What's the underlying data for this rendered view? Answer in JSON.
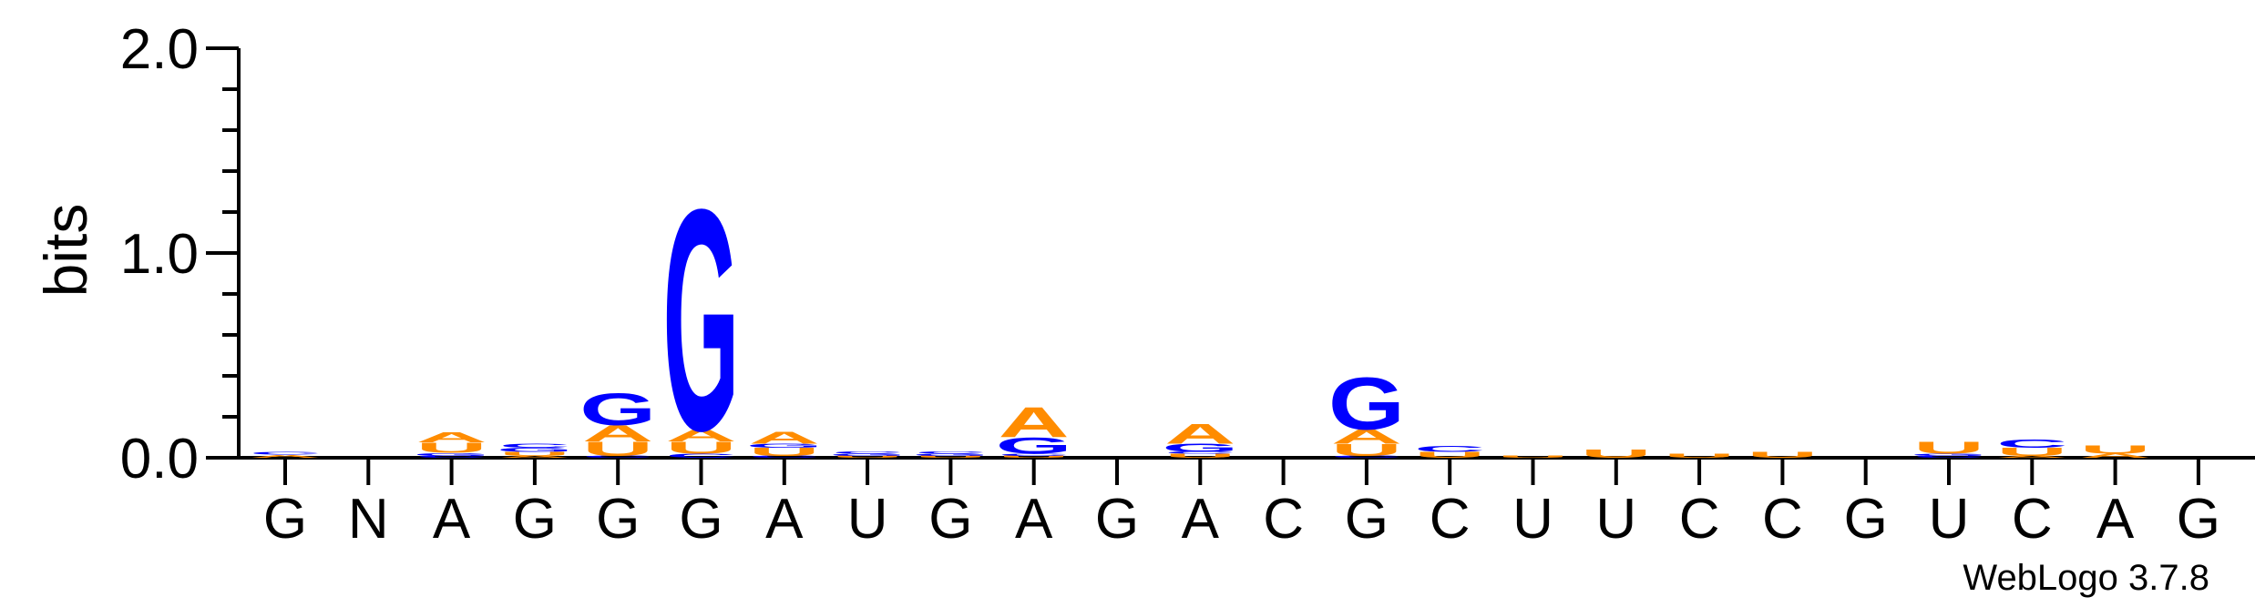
{
  "chart_data": {
    "type": "sequence-logo",
    "ylabel": "bits",
    "ylim": [
      0,
      2.0
    ],
    "yticks": [
      "0.0",
      "1.0",
      "2.0"
    ],
    "credit": "WebLogo 3.7.8",
    "colors": {
      "A": "#ff8c00",
      "U": "#ff8c00",
      "G": "#0000ff",
      "C": "#0000ff"
    },
    "positions": [
      {
        "label": "G",
        "stack": [
          {
            "letter": "A",
            "bits": 0.015
          },
          {
            "letter": "C",
            "bits": 0.015
          }
        ]
      },
      {
        "label": "N",
        "stack": []
      },
      {
        "label": "A",
        "stack": [
          {
            "letter": "C",
            "bits": 0.01
          },
          {
            "letter": "G",
            "bits": 0.015
          },
          {
            "letter": "U",
            "bits": 0.05
          },
          {
            "letter": "A",
            "bits": 0.05
          }
        ]
      },
      {
        "label": "G",
        "stack": [
          {
            "letter": "A",
            "bits": 0.01
          },
          {
            "letter": "U",
            "bits": 0.02
          },
          {
            "letter": "G",
            "bits": 0.02
          },
          {
            "letter": "C",
            "bits": 0.02
          }
        ]
      },
      {
        "label": "G",
        "stack": [
          {
            "letter": "C",
            "bits": 0.01
          },
          {
            "letter": "U",
            "bits": 0.07
          },
          {
            "letter": "A",
            "bits": 0.08
          },
          {
            "letter": "G",
            "bits": 0.16
          }
        ]
      },
      {
        "label": "G",
        "stack": [
          {
            "letter": "C",
            "bits": 0.02
          },
          {
            "letter": "U",
            "bits": 0.06
          },
          {
            "letter": "A",
            "bits": 0.06
          },
          {
            "letter": "G",
            "bits": 1.11
          }
        ]
      },
      {
        "label": "A",
        "stack": [
          {
            "letter": "C",
            "bits": 0.01
          },
          {
            "letter": "U",
            "bits": 0.04
          },
          {
            "letter": "G",
            "bits": 0.02
          },
          {
            "letter": "A",
            "bits": 0.06
          }
        ]
      },
      {
        "label": "U",
        "stack": [
          {
            "letter": "U",
            "bits": 0.01
          },
          {
            "letter": "G",
            "bits": 0.01
          },
          {
            "letter": "C",
            "bits": 0.01
          }
        ]
      },
      {
        "label": "G",
        "stack": [
          {
            "letter": "U",
            "bits": 0.01
          },
          {
            "letter": "G",
            "bits": 0.01
          },
          {
            "letter": "C",
            "bits": 0.01
          }
        ]
      },
      {
        "label": "A",
        "stack": [
          {
            "letter": "U",
            "bits": 0.01
          },
          {
            "letter": "C",
            "bits": 0.01
          },
          {
            "letter": "G",
            "bits": 0.08
          },
          {
            "letter": "A",
            "bits": 0.15
          }
        ]
      },
      {
        "label": "G",
        "stack": []
      },
      {
        "label": "A",
        "stack": [
          {
            "letter": "U",
            "bits": 0.02
          },
          {
            "letter": "C",
            "bits": 0.01
          },
          {
            "letter": "G",
            "bits": 0.04
          },
          {
            "letter": "A",
            "bits": 0.1
          }
        ]
      },
      {
        "label": "C",
        "stack": []
      },
      {
        "label": "G",
        "stack": [
          {
            "letter": "C",
            "bits": 0.01
          },
          {
            "letter": "U",
            "bits": 0.06
          },
          {
            "letter": "A",
            "bits": 0.07
          },
          {
            "letter": "G",
            "bits": 0.26
          }
        ]
      },
      {
        "label": "C",
        "stack": [
          {
            "letter": "U",
            "bits": 0.03
          },
          {
            "letter": "C",
            "bits": 0.03
          }
        ]
      },
      {
        "label": "U",
        "stack": [
          {
            "letter": "U",
            "bits": 0.01
          }
        ]
      },
      {
        "label": "U",
        "stack": [
          {
            "letter": "U",
            "bits": 0.04
          }
        ]
      },
      {
        "label": "C",
        "stack": [
          {
            "letter": "U",
            "bits": 0.02
          }
        ]
      },
      {
        "label": "C",
        "stack": [
          {
            "letter": "U",
            "bits": 0.03
          }
        ]
      },
      {
        "label": "G",
        "stack": []
      },
      {
        "label": "U",
        "stack": [
          {
            "letter": "C",
            "bits": 0.01
          },
          {
            "letter": "G",
            "bits": 0.01
          },
          {
            "letter": "U",
            "bits": 0.06
          }
        ]
      },
      {
        "label": "C",
        "stack": [
          {
            "letter": "A",
            "bits": 0.01
          },
          {
            "letter": "U",
            "bits": 0.04
          },
          {
            "letter": "C",
            "bits": 0.04
          }
        ]
      },
      {
        "label": "A",
        "stack": [
          {
            "letter": "A",
            "bits": 0.02
          },
          {
            "letter": "U",
            "bits": 0.04
          }
        ]
      },
      {
        "label": "G",
        "stack": []
      }
    ]
  }
}
